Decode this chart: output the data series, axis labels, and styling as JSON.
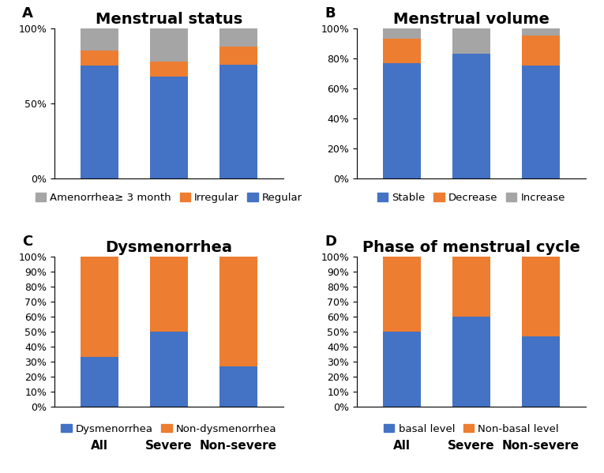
{
  "chart_A": {
    "title": "Menstrual status",
    "label": "A",
    "categories": [
      "All",
      "Severe",
      "Non-severe"
    ],
    "show_xticklabels": false,
    "series": {
      "Regular": [
        0.75,
        0.68,
        0.76
      ],
      "Irregular": [
        0.1,
        0.1,
        0.12
      ],
      "Amenorrhea≥ 3 month": [
        0.15,
        0.22,
        0.12
      ]
    },
    "colors": {
      "Regular": "#4472C4",
      "Irregular": "#ED7D31",
      "Amenorrhea≥ 3 month": "#A5A5A5"
    },
    "legend_order": [
      "Amenorrhea≥ 3 month",
      "Irregular",
      "Regular"
    ],
    "yticks": [
      0,
      0.5,
      1.0
    ],
    "ytick_labels": [
      "0%",
      "50%",
      "100%"
    ]
  },
  "chart_B": {
    "title": "Menstrual volume",
    "label": "B",
    "categories": [
      "All",
      "Severe",
      "Non-severe"
    ],
    "show_xticklabels": false,
    "series": {
      "Stable": [
        0.77,
        0.83,
        0.75
      ],
      "Decrease": [
        0.16,
        0.0,
        0.2
      ],
      "Increase": [
        0.07,
        0.17,
        0.05
      ]
    },
    "colors": {
      "Stable": "#4472C4",
      "Decrease": "#ED7D31",
      "Increase": "#A5A5A5"
    },
    "legend_order": [
      "Stable",
      "Decrease",
      "Increase"
    ],
    "yticks": [
      0,
      0.2,
      0.4,
      0.6,
      0.8,
      1.0
    ],
    "ytick_labels": [
      "0%",
      "20%",
      "40%",
      "60%",
      "80%",
      "100%"
    ]
  },
  "chart_C": {
    "title": "Dysmenorrhea",
    "label": "C",
    "categories": [
      "All",
      "Severe",
      "Non-severe"
    ],
    "show_xticklabels": true,
    "series": {
      "Dysmenorrhea": [
        0.33,
        0.5,
        0.27
      ],
      "Non-dysmenorrhea": [
        0.67,
        0.5,
        0.73
      ]
    },
    "colors": {
      "Dysmenorrhea": "#4472C4",
      "Non-dysmenorrhea": "#ED7D31"
    },
    "legend_order": [
      "Dysmenorrhea",
      "Non-dysmenorrhea"
    ],
    "yticks": [
      0,
      0.1,
      0.2,
      0.3,
      0.4,
      0.5,
      0.6,
      0.7,
      0.8,
      0.9,
      1.0
    ],
    "ytick_labels": [
      "0%",
      "10%",
      "20%",
      "30%",
      "40%",
      "50%",
      "60%",
      "70%",
      "80%",
      "90%",
      "100%"
    ]
  },
  "chart_D": {
    "title": "Phase of menstrual cycle",
    "label": "D",
    "categories": [
      "All",
      "Severe",
      "Non-severe"
    ],
    "show_xticklabels": true,
    "series": {
      "basal level": [
        0.5,
        0.6,
        0.47
      ],
      "Non-basal level": [
        0.5,
        0.4,
        0.53
      ]
    },
    "colors": {
      "basal level": "#4472C4",
      "Non-basal level": "#ED7D31"
    },
    "legend_order": [
      "basal level",
      "Non-basal level"
    ],
    "yticks": [
      0,
      0.1,
      0.2,
      0.3,
      0.4,
      0.5,
      0.6,
      0.7,
      0.8,
      0.9,
      1.0
    ],
    "ytick_labels": [
      "0%",
      "10%",
      "20%",
      "30%",
      "40%",
      "50%",
      "60%",
      "70%",
      "80%",
      "90%",
      "100%"
    ]
  },
  "bar_width": 0.55,
  "background_color": "#FFFFFF",
  "title_fontsize": 14,
  "label_fontsize": 13,
  "tick_fontsize": 9,
  "legend_fontsize": 9.5,
  "xtick_fontsize": 11
}
